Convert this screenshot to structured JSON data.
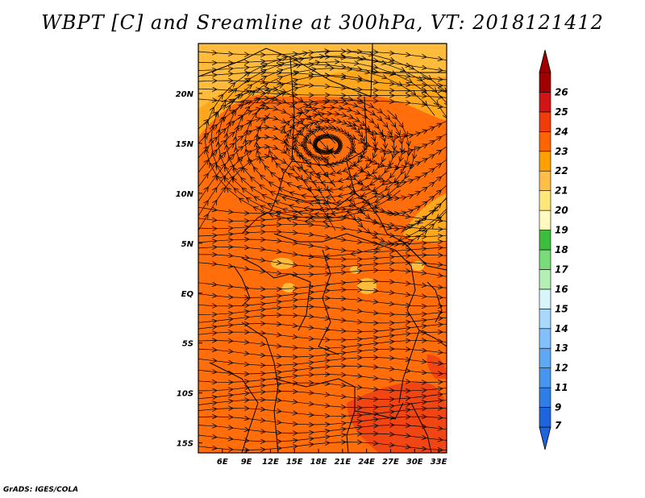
{
  "title": "WBPT [C] and Sreamline at 300hPa, VT: 2018121412",
  "credit": "GrADS: IGES/COLA",
  "map": {
    "lon_ticks": [
      "6E",
      "9E",
      "12E",
      "15E",
      "18E",
      "21E",
      "24E",
      "27E",
      "30E",
      "33E"
    ],
    "lat_ticks": [
      "20N",
      "15N",
      "10N",
      "5N",
      "EQ",
      "5S",
      "10S",
      "15S"
    ],
    "lon_range": [
      3,
      34
    ],
    "lat_range": [
      -16,
      25
    ]
  },
  "colorbar": {
    "labels": [
      "7",
      "9",
      "11",
      "12",
      "13",
      "14",
      "15",
      "16",
      "17",
      "18",
      "19",
      "20",
      "21",
      "22",
      "23",
      "24",
      "25",
      "26"
    ],
    "colors": [
      "#1e64dc",
      "#2f7ee8",
      "#4696f0",
      "#5fa8f4",
      "#82c0fa",
      "#a8d8fc",
      "#d6f6fc",
      "#b4f0b4",
      "#78dc78",
      "#3cbe3c",
      "#fffac0",
      "#ffe678",
      "#ffbe46",
      "#ffa000",
      "#ff6400",
      "#f03c0a",
      "#d21414",
      "#a00000"
    ]
  }
}
